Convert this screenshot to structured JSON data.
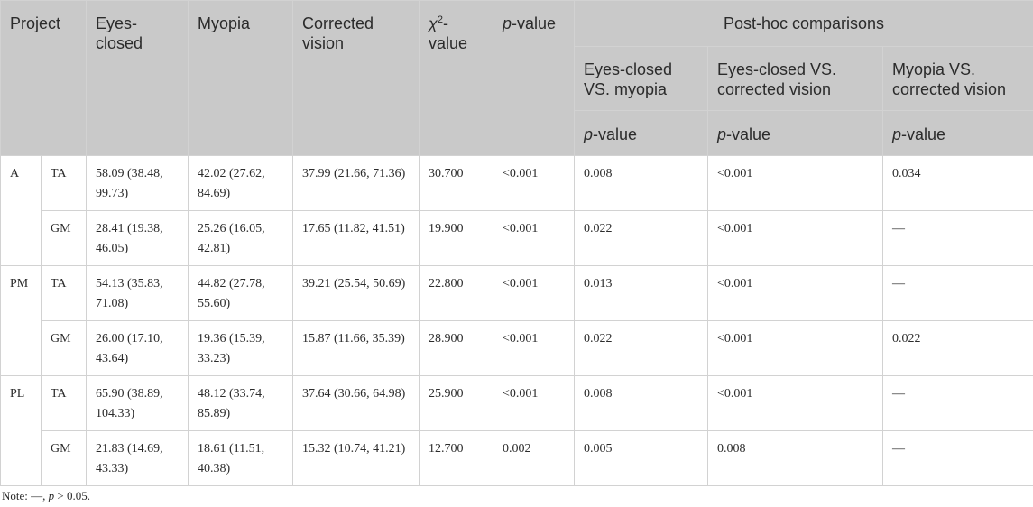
{
  "header": {
    "project": "Project",
    "eyes_closed": "Eyes-closed",
    "myopia": "Myopia",
    "corrected_vision": "Corrected vision",
    "chi_symbol": "χ",
    "chi_sup": "2",
    "chi_suffix": "-value",
    "p_value_italic": "p",
    "p_value_suffix": "-value",
    "posthoc_title": "Post-hoc comparisons",
    "comparisons": [
      "Eyes-closed VS. myopia",
      "Eyes-closed VS. corrected vision",
      "Myopia VS. corrected vision"
    ]
  },
  "groups": [
    {
      "project": "A",
      "rows": [
        {
          "muscle": "TA",
          "eyes_closed": "58.09 (38.48, 99.73)",
          "myopia": "42.02 (27.62, 84.69)",
          "corrected": "37.99 (21.66, 71.36)",
          "chi2": "30.700",
          "p": "<0.001",
          "p1": "0.008",
          "p2": "<0.001",
          "p3": "0.034"
        },
        {
          "muscle": "GM",
          "eyes_closed": "28.41 (19.38, 46.05)",
          "myopia": "25.26 (16.05, 42.81)",
          "corrected": "17.65 (11.82, 41.51)",
          "chi2": "19.900",
          "p": "<0.001",
          "p1": "0.022",
          "p2": "<0.001",
          "p3": "—"
        }
      ]
    },
    {
      "project": "PM",
      "rows": [
        {
          "muscle": "TA",
          "eyes_closed": "54.13 (35.83, 71.08)",
          "myopia": "44.82 (27.78, 55.60)",
          "corrected": "39.21 (25.54, 50.69)",
          "chi2": "22.800",
          "p": "<0.001",
          "p1": "0.013",
          "p2": "<0.001",
          "p3": "—"
        },
        {
          "muscle": "GM",
          "eyes_closed": "26.00 (17.10, 43.64)",
          "myopia": "19.36 (15.39, 33.23)",
          "corrected": "15.87 (11.66, 35.39)",
          "chi2": "28.900",
          "p": "<0.001",
          "p1": "0.022",
          "p2": "<0.001",
          "p3": "0.022"
        }
      ]
    },
    {
      "project": "PL",
      "rows": [
        {
          "muscle": "TA",
          "eyes_closed": "65.90 (38.89, 104.33)",
          "myopia": "48.12 (33.74, 85.89)",
          "corrected": "37.64 (30.66, 64.98)",
          "chi2": "25.900",
          "p": "<0.001",
          "p1": "0.008",
          "p2": "<0.001",
          "p3": "—"
        },
        {
          "muscle": "GM",
          "eyes_closed": "21.83 (14.69, 43.33)",
          "myopia": "18.61 (11.51, 40.38)",
          "corrected": "15.32 (10.74, 41.21)",
          "chi2": "12.700",
          "p": "0.002",
          "p1": "0.005",
          "p2": "0.008",
          "p3": "—"
        }
      ]
    }
  ],
  "note": {
    "prefix": "Note: —, ",
    "p_italic": "p",
    "suffix": " > 0.05."
  }
}
